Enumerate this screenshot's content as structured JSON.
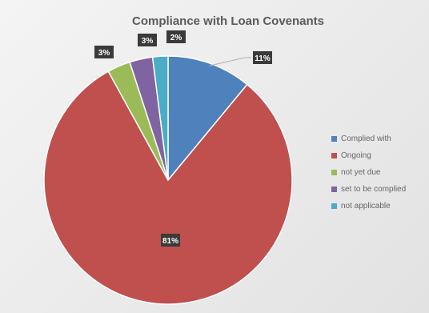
{
  "chart_data": {
    "type": "pie",
    "title": "Compliance with Loan Covenants",
    "legend_position": "right",
    "slices": [
      {
        "label": "Complied with",
        "value": 11,
        "display": "11%",
        "color": "#4f81bd"
      },
      {
        "label": "Ongoing",
        "value": 81,
        "display": "81%",
        "color": "#c0504d"
      },
      {
        "label": "not yet due",
        "value": 3,
        "display": "3%",
        "color": "#9bbb59"
      },
      {
        "label": "set to be complied",
        "value": 3,
        "display": "3%",
        "color": "#8064a2"
      },
      {
        "label": "not applicable",
        "value": 2,
        "display": "2%",
        "color": "#4bacc6"
      }
    ]
  }
}
